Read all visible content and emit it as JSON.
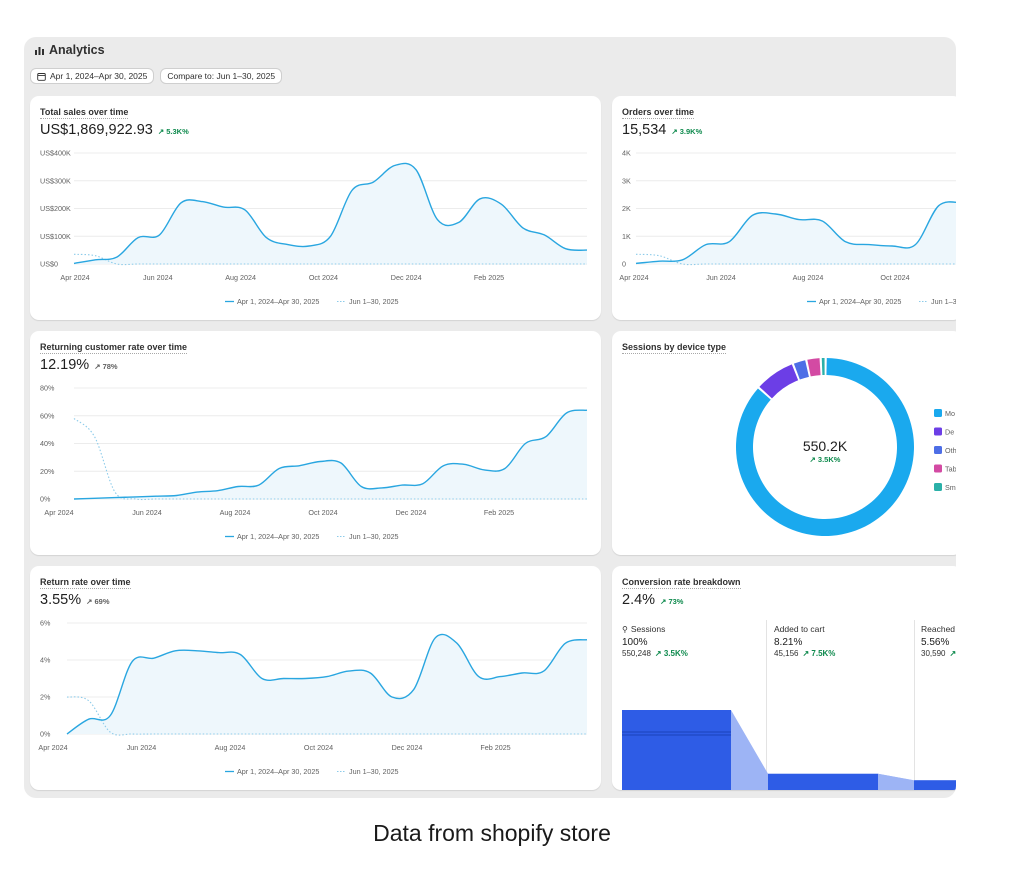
{
  "header": {
    "title": "Analytics",
    "icon": "bar-chart-icon"
  },
  "filters": {
    "date_range": "Apr 1, 2024–Apr 30, 2025",
    "compare": "Compare to: Jun 1–30, 2025"
  },
  "legend": {
    "primary": "Apr 1, 2024–Apr 30, 2025",
    "compare": "Jun 1–30, 2025"
  },
  "colors": {
    "primary": "#29a6e0",
    "compare": "#8ccbea",
    "accent_up": "#0e8a4d",
    "funnel": "#2e5ce6",
    "funnel_light": "#9db4f5"
  },
  "cards": {
    "total_sales": {
      "title": "Total sales over time",
      "value": "US$1,869,922.93",
      "change": "5.3K%"
    },
    "orders": {
      "title": "Orders over time",
      "value": "15,534",
      "change": "3.9K%"
    },
    "returning": {
      "title": "Returning customer rate over time",
      "value": "12.19%",
      "change": "78%"
    },
    "sessions_device": {
      "title": "Sessions by device type",
      "value": "550.2K",
      "change": "3.5K%"
    },
    "return_rate": {
      "title": "Return rate over time",
      "value": "3.55%",
      "change": "69%"
    },
    "conversion": {
      "title": "Conversion rate breakdown",
      "value": "2.4%",
      "change": "73%"
    }
  },
  "chart_data": [
    {
      "id": "total_sales",
      "type": "line",
      "x_ticks": [
        "Apr 2024",
        "Jun 2024",
        "Aug 2024",
        "Oct 2024",
        "Dec 2024",
        "Feb 2025"
      ],
      "y_ticks": [
        "US$0",
        "US$100K",
        "US$200K",
        "US$300K",
        "US$400K"
      ],
      "ylim": [
        0,
        400000
      ],
      "series": [
        {
          "name": "Apr 1, 2024–Apr 30, 2025",
          "values": [
            2000,
            15000,
            25000,
            95000,
            105000,
            220000,
            225000,
            205000,
            195000,
            95000,
            70000,
            65000,
            100000,
            265000,
            295000,
            355000,
            340000,
            160000,
            150000,
            235000,
            215000,
            130000,
            105000,
            55000,
            50000
          ]
        },
        {
          "name": "Jun 1–30, 2025",
          "values": [
            35000,
            30000,
            0,
            0,
            0,
            0,
            0,
            0,
            0,
            0,
            0,
            0,
            0,
            0,
            0,
            0,
            0,
            0,
            0,
            0,
            0,
            0,
            0,
            0,
            0
          ]
        }
      ]
    },
    {
      "id": "orders",
      "type": "line",
      "x_ticks": [
        "Apr 2024",
        "Jun 2024",
        "Aug 2024",
        "Oct 2024"
      ],
      "y_ticks": [
        "0",
        "1K",
        "2K",
        "3K",
        "4K"
      ],
      "ylim": [
        0,
        4000
      ],
      "series": [
        {
          "name": "Apr 1, 2024–Apr 30, 2025",
          "values": [
            20,
            100,
            150,
            700,
            800,
            1750,
            1800,
            1600,
            1550,
            800,
            700,
            650,
            700,
            2100,
            2200
          ]
        },
        {
          "name": "Jun 1–30, 2025",
          "values": [
            350,
            300,
            0,
            0,
            0,
            0,
            0,
            0,
            0,
            0,
            0,
            0,
            0,
            0,
            0
          ]
        }
      ]
    },
    {
      "id": "returning",
      "type": "line",
      "x_ticks": [
        "Apr 2024",
        "Jun 2024",
        "Aug 2024",
        "Oct 2024",
        "Dec 2024",
        "Feb 2025"
      ],
      "y_ticks": [
        "0%",
        "20%",
        "40%",
        "60%",
        "80%"
      ],
      "ylim": [
        0,
        80
      ],
      "series": [
        {
          "name": "Apr 1, 2024–Apr 30, 2025",
          "values": [
            0,
            0.5,
            1,
            1.5,
            2,
            2.5,
            5,
            6,
            9,
            10,
            22,
            24,
            27,
            26,
            9,
            8,
            10,
            11,
            24,
            25,
            21,
            22,
            40,
            45,
            62,
            64
          ]
        },
        {
          "name": "Jun 1–30, 2025",
          "values": [
            58,
            45,
            5,
            0,
            0,
            0,
            0,
            0,
            0,
            0,
            0,
            0,
            0,
            0,
            0,
            0,
            0,
            0,
            0,
            0,
            0,
            0,
            0,
            0,
            0,
            0
          ]
        }
      ]
    },
    {
      "id": "sessions_device",
      "type": "pie",
      "legend": [
        "Mo",
        "De",
        "Oth",
        "Tab",
        "Sm"
      ],
      "values": [
        86.5,
        7.5,
        2.5,
        2.6,
        0.9
      ],
      "colors": [
        "#1aa9ee",
        "#6c3ee6",
        "#4d6ee6",
        "#d34aa3",
        "#2bb0a8"
      ]
    },
    {
      "id": "return_rate",
      "type": "line",
      "x_ticks": [
        "Apr 2024",
        "Jun 2024",
        "Aug 2024",
        "Oct 2024",
        "Dec 2024",
        "Feb 2025"
      ],
      "y_ticks": [
        "0%",
        "2%",
        "4%",
        "6%"
      ],
      "ylim": [
        0,
        6
      ],
      "series": [
        {
          "name": "Apr 1, 2024–Apr 30, 2025",
          "values": [
            0,
            0.8,
            1.0,
            3.9,
            4.1,
            4.5,
            4.5,
            4.4,
            4.3,
            3.0,
            3.0,
            3.0,
            3.1,
            3.4,
            3.3,
            2.0,
            2.4,
            5.2,
            4.9,
            3.1,
            3.1,
            3.3,
            3.4,
            4.9,
            5.1
          ]
        },
        {
          "name": "Jun 1–30, 2025",
          "values": [
            2.0,
            1.8,
            0.1,
            0,
            0,
            0,
            0,
            0,
            0,
            0,
            0,
            0,
            0,
            0,
            0,
            0,
            0,
            0,
            0,
            0,
            0,
            0,
            0,
            0,
            0
          ]
        }
      ]
    }
  ],
  "funnel": [
    {
      "label": "Sessions",
      "pct": "100%",
      "count": "550,248",
      "change": "3.5K%",
      "fill": 1.0
    },
    {
      "label": "Added to cart",
      "pct": "8.21%",
      "count": "45,156",
      "change": "7.5K%",
      "fill": 0.41
    },
    {
      "label": "Reached",
      "pct": "5.56%",
      "count": "30,590",
      "change": "",
      "fill": 0.35
    }
  ],
  "caption": "Data from shopify store"
}
